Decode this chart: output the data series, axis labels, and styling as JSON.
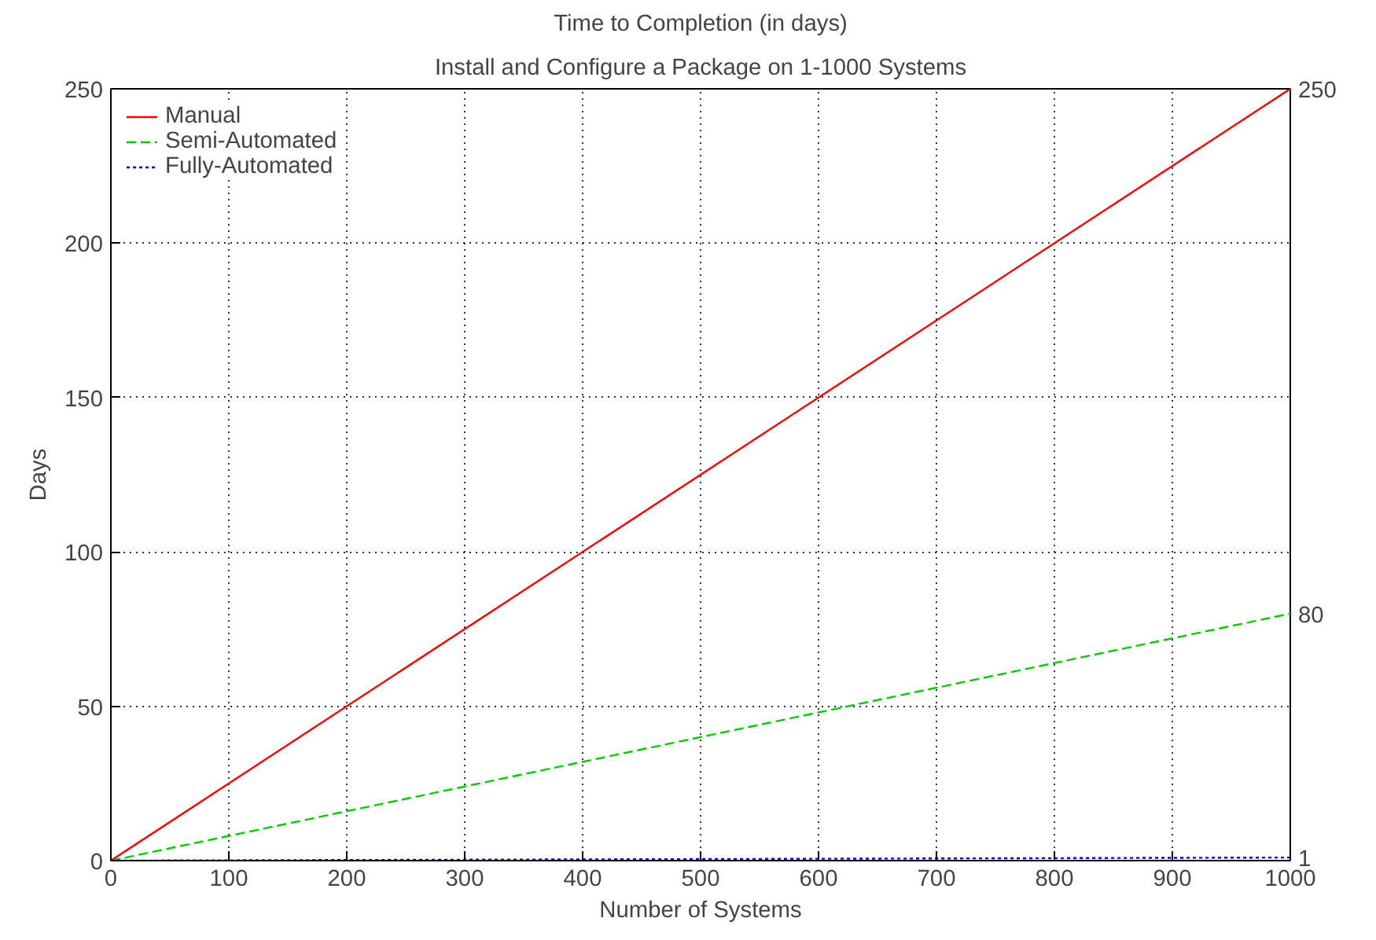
{
  "chart_data": {
    "type": "line",
    "title": "Time to Completion (in days)",
    "subtitle": "Install and Configure a Package on 1-1000 Systems",
    "xlabel": "Number of Systems",
    "ylabel": "Days",
    "x": [
      0,
      1000
    ],
    "series": [
      {
        "name": "Manual",
        "color": "#ff0000",
        "values": [
          0,
          250
        ],
        "line_style": "solid"
      },
      {
        "name": "Semi-Automated",
        "color": "#00cc00",
        "values": [
          0,
          80
        ],
        "line_style": "dashed"
      },
      {
        "name": "Fully-Automated",
        "color": "#0000ff",
        "values": [
          0,
          1
        ],
        "line_style": "dotted"
      }
    ],
    "y2lim": [
      0,
      250
    ],
    "y2ticks": [
      1,
      80,
      250
    ],
    "xlim": [
      0,
      1000
    ],
    "ylim": [
      0,
      250
    ],
    "xticks": [
      0,
      100,
      200,
      300,
      400,
      500,
      600,
      700,
      800,
      900,
      1000
    ],
    "yticks": [
      0,
      50,
      100,
      150,
      200,
      250
    ],
    "grid": true,
    "legend": "top left",
    "marker": "none"
  }
}
